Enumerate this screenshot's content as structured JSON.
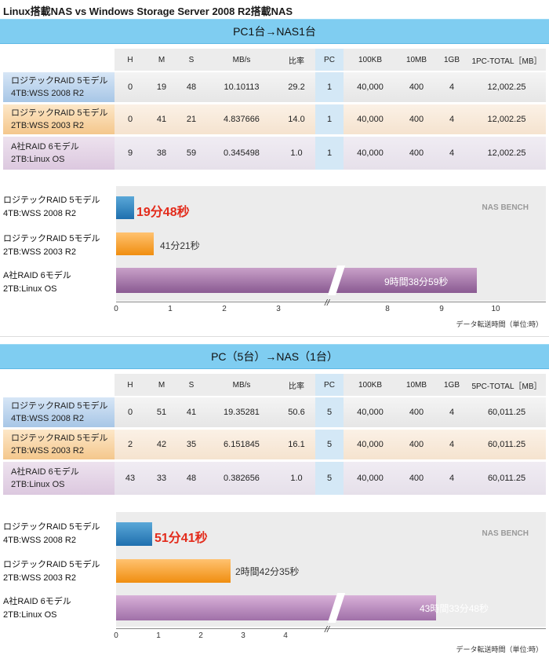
{
  "title": "Linux搭載NAS vs Windows Storage Server 2008 R2搭載NAS",
  "headers": [
    "H",
    "M",
    "S",
    "MB/s",
    "比率",
    "PC",
    "100KB",
    "10MB",
    "1GB"
  ],
  "labels": {
    "r1a": "ロジテックRAID 5モデル",
    "r1b": "4TB:WSS 2008 R2",
    "r2a": "ロジテックRAID 5モデル",
    "r2b": "2TB:WSS 2003 R2",
    "r3a": "A社RAID 6モデル",
    "r3b": "2TB:Linux OS"
  },
  "bench_label": "NAS BENCH",
  "unit_label": "データ転送時間（単位:時）",
  "colors": {
    "header_band": "#7fcdf1",
    "highlight": "#e32b1b",
    "bar_blue": "#1f6fae",
    "bar_orange": "#f08e10",
    "bar_purple": "#8a5a92"
  },
  "sections": [
    {
      "header": "PC1台→NAS1台",
      "total_header": "1PC-TOTAL［MB］",
      "rows": [
        {
          "H": "0",
          "M": "19",
          "S": "48",
          "MBs": "10.10113",
          "ratio": "29.2",
          "PC": "1",
          "k100": "40,000",
          "m10": "400",
          "g1": "4",
          "total": "12,002.25"
        },
        {
          "H": "0",
          "M": "41",
          "S": "21",
          "MBs": "4.837666",
          "ratio": "14.0",
          "PC": "1",
          "k100": "40,000",
          "m10": "400",
          "g1": "4",
          "total": "12,002.25"
        },
        {
          "H": "9",
          "M": "38",
          "S": "59",
          "MBs": "0.345498",
          "ratio": "1.0",
          "PC": "1",
          "k100": "40,000",
          "m10": "400",
          "g1": "4",
          "total": "12,002.25"
        }
      ]
    },
    {
      "header": "PC（5台）→NAS（1台）",
      "total_header": "5PC-TOTAL［MB］",
      "rows": [
        {
          "H": "0",
          "M": "51",
          "S": "41",
          "MBs": "19.35281",
          "ratio": "50.6",
          "PC": "5",
          "k100": "40,000",
          "m10": "400",
          "g1": "4",
          "total": "60,011.25"
        },
        {
          "H": "2",
          "M": "42",
          "S": "35",
          "MBs": "6.151845",
          "ratio": "16.1",
          "PC": "5",
          "k100": "40,000",
          "m10": "400",
          "g1": "4",
          "total": "60,011.25"
        },
        {
          "H": "43",
          "M": "33",
          "S": "48",
          "MBs": "0.382656",
          "ratio": "1.0",
          "PC": "5",
          "k100": "40,000",
          "m10": "400",
          "g1": "4",
          "total": "60,011.25"
        }
      ]
    }
  ],
  "chart_data": [
    {
      "type": "bar",
      "orientation": "horizontal",
      "xlabel": "データ転送時間（単位:時）",
      "axis_break": [
        4,
        7
      ],
      "xticks": [
        0,
        1,
        2,
        3,
        8,
        9,
        10
      ],
      "categories": [
        "ロジテックRAID 5モデル 4TB:WSS 2008 R2",
        "ロジテックRAID 5モデル 2TB:WSS 2003 R2",
        "A社RAID 6モデル 2TB:Linux OS"
      ],
      "values": [
        0.33,
        0.689,
        9.65
      ],
      "value_labels": [
        "19分48秒",
        "41分21秒",
        "9時間38分59秒"
      ]
    },
    {
      "type": "bar",
      "orientation": "horizontal",
      "xlabel": "データ転送時間（単位:時）",
      "axis_break": [
        4,
        43
      ],
      "xticks": [
        0,
        1,
        2,
        3,
        4
      ],
      "categories": [
        "ロジテックRAID 5モデル 4TB:WSS 2008 R2",
        "ロジテックRAID 5モデル 2TB:WSS 2003 R2",
        "A社RAID 6モデル 2TB:Linux OS"
      ],
      "values": [
        0.861,
        2.71,
        43.56
      ],
      "value_labels": [
        "51分41秒",
        "2時間42分35秒",
        "43時間33分48秒"
      ]
    }
  ]
}
